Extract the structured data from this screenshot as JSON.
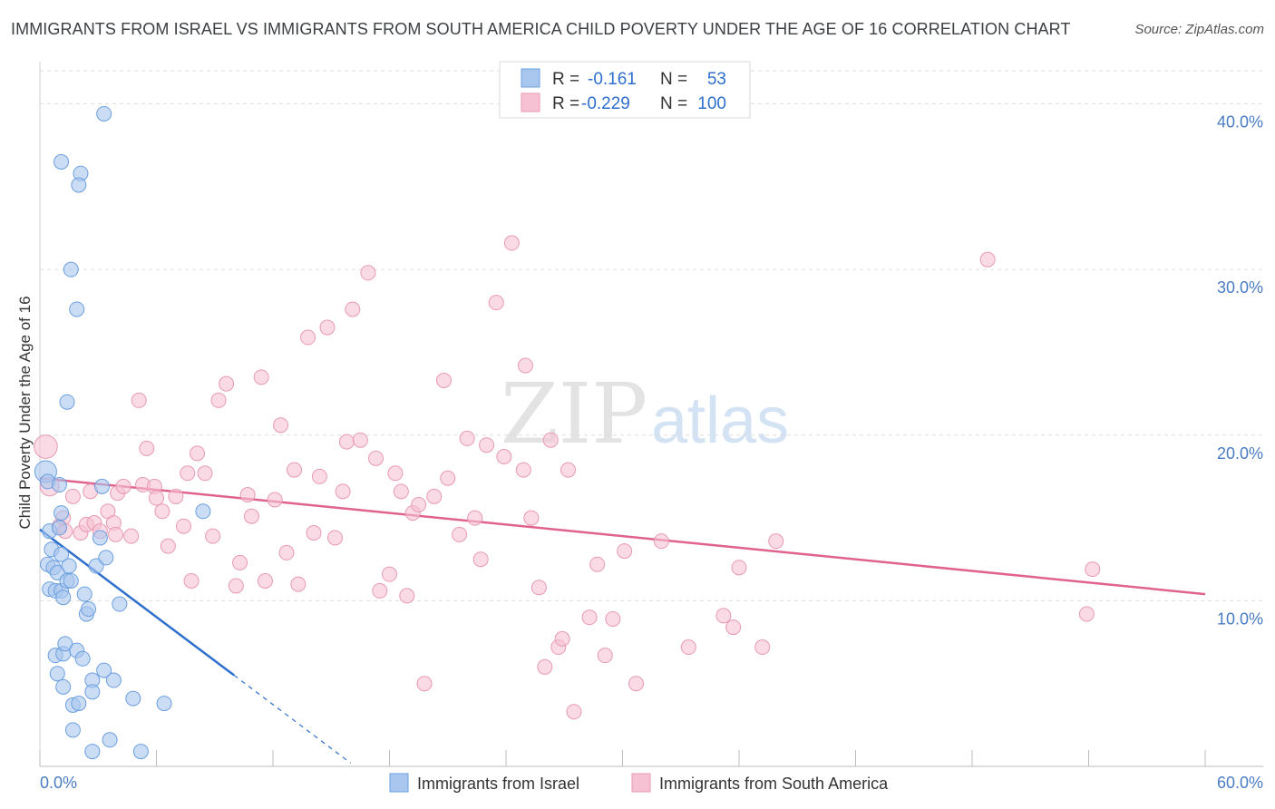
{
  "title": "IMMIGRANTS FROM ISRAEL VS IMMIGRANTS FROM SOUTH AMERICA CHILD POVERTY UNDER THE AGE OF 16 CORRELATION CHART",
  "source": "Source: ZipAtlas.com",
  "watermark": {
    "zip": "ZIP",
    "atlas": "atlas"
  },
  "colors": {
    "israel_fill": "#a9c7ee",
    "israel_stroke": "#6b9fe0",
    "israel_line": "#2e6fce",
    "sa_fill": "#f6c1d2",
    "sa_stroke": "#e89ab3",
    "sa_line": "#e0628f",
    "grid": "#dedede",
    "axis_text": "#4a7cc4"
  },
  "legend": {
    "rows": [
      {
        "r_label": "R =",
        "r_value": "-0.161",
        "n_label": "N =",
        "n_value": "53"
      },
      {
        "r_label": "R =",
        "r_value": "-0.229",
        "n_label": "N =",
        "n_value": "100"
      }
    ]
  },
  "chart_data": {
    "type": "scatter",
    "title": "IMMIGRANTS FROM ISRAEL VS IMMIGRANTS FROM SOUTH AMERICA CHILD POVERTY UNDER THE AGE OF 16 CORRELATION CHART",
    "xlabel": "",
    "ylabel": "Child Poverty Under the Age of 16",
    "xlim": [
      0,
      60
    ],
    "ylim": [
      0,
      42
    ],
    "x_tick_labels": [
      "0.0%",
      "60.0%"
    ],
    "y_ticks": [
      {
        "value": 10,
        "label": "10.0%"
      },
      {
        "value": 20,
        "label": "20.0%"
      },
      {
        "value": 30,
        "label": "30.0%"
      },
      {
        "value": 40,
        "label": "40.0%"
      }
    ],
    "grid": true,
    "legend_position": "top-center",
    "series": [
      {
        "name": "Immigrants from Israel",
        "color": "#a9c7ee",
        "trend": {
          "x": [
            0.0,
            10.0
          ],
          "y": [
            14.3,
            5.5
          ]
        },
        "trend_dashed": {
          "x": [
            10.0,
            16.0
          ],
          "y": [
            5.5,
            0.2
          ]
        },
        "points": [
          [
            0.3,
            17.8,
            1.5
          ],
          [
            0.4,
            17.2,
            1.0
          ],
          [
            0.5,
            14.2,
            1.0
          ],
          [
            0.4,
            12.2,
            1.0
          ],
          [
            0.5,
            10.7,
            1.0
          ],
          [
            0.6,
            13.1,
            1.0
          ],
          [
            0.7,
            12.0,
            1.0
          ],
          [
            0.8,
            10.6,
            1.0
          ],
          [
            0.9,
            11.7,
            1.0
          ],
          [
            0.8,
            6.7,
            1.0
          ],
          [
            0.9,
            5.6,
            1.0
          ],
          [
            1.0,
            17.0,
            1.0
          ],
          [
            1.1,
            15.3,
            1.0
          ],
          [
            1.0,
            14.4,
            1.0
          ],
          [
            1.1,
            12.8,
            1.0
          ],
          [
            1.1,
            10.6,
            1.0
          ],
          [
            1.2,
            10.2,
            1.0
          ],
          [
            1.2,
            6.8,
            1.0
          ],
          [
            1.3,
            7.4,
            1.0
          ],
          [
            1.2,
            4.8,
            1.0
          ],
          [
            1.4,
            11.2,
            1.0
          ],
          [
            1.5,
            12.1,
            1.0
          ],
          [
            1.6,
            11.2,
            1.0
          ],
          [
            1.7,
            3.7,
            1.0
          ],
          [
            1.7,
            2.2,
            1.0
          ],
          [
            1.9,
            7.0,
            1.0
          ],
          [
            2.0,
            3.8,
            1.0
          ],
          [
            2.2,
            6.5,
            1.0
          ],
          [
            2.3,
            10.4,
            1.0
          ],
          [
            2.4,
            9.2,
            1.0
          ],
          [
            2.5,
            9.5,
            1.0
          ],
          [
            2.7,
            5.2,
            1.0
          ],
          [
            2.7,
            4.5,
            1.0
          ],
          [
            2.7,
            0.9,
            1.0
          ],
          [
            2.9,
            12.1,
            1.0
          ],
          [
            3.1,
            13.8,
            1.0
          ],
          [
            3.2,
            16.9,
            1.0
          ],
          [
            3.3,
            5.8,
            1.0
          ],
          [
            3.4,
            12.6,
            1.0
          ],
          [
            3.6,
            1.6,
            1.0
          ],
          [
            3.8,
            5.2,
            1.0
          ],
          [
            4.1,
            9.8,
            1.0
          ],
          [
            4.8,
            4.1,
            1.0
          ],
          [
            5.2,
            0.9,
            1.0
          ],
          [
            6.4,
            3.8,
            1.0
          ],
          [
            8.4,
            15.4,
            1.0
          ],
          [
            1.1,
            36.5,
            1.0
          ],
          [
            2.1,
            35.8,
            1.0
          ],
          [
            2.0,
            35.1,
            1.0
          ],
          [
            3.3,
            39.4,
            1.0
          ],
          [
            1.6,
            30.0,
            1.0
          ],
          [
            1.9,
            27.6,
            1.0
          ],
          [
            1.4,
            22.0,
            1.0
          ]
        ]
      },
      {
        "name": "Immigrants from South America",
        "color": "#f6c1d2",
        "trend": {
          "x": [
            0.0,
            60.0
          ],
          "y": [
            17.4,
            10.4
          ]
        },
        "points": [
          [
            0.3,
            19.3,
            1.6
          ],
          [
            0.5,
            16.9,
            1.3
          ],
          [
            1.0,
            14.5,
            1.0
          ],
          [
            1.2,
            15.0,
            1.0
          ],
          [
            1.3,
            14.2,
            1.0
          ],
          [
            1.7,
            16.3,
            1.0
          ],
          [
            2.1,
            14.1,
            1.0
          ],
          [
            2.4,
            14.6,
            1.0
          ],
          [
            2.6,
            16.6,
            1.0
          ],
          [
            2.8,
            14.7,
            1.0
          ],
          [
            3.1,
            14.2,
            1.0
          ],
          [
            3.5,
            15.4,
            1.0
          ],
          [
            3.8,
            14.7,
            1.0
          ],
          [
            4.0,
            16.5,
            1.0
          ],
          [
            4.3,
            16.9,
            1.0
          ],
          [
            4.7,
            13.9,
            1.0
          ],
          [
            5.1,
            22.1,
            1.0
          ],
          [
            5.3,
            17.0,
            1.0
          ],
          [
            5.5,
            19.2,
            1.0
          ],
          [
            5.9,
            16.9,
            1.0
          ],
          [
            6.0,
            16.2,
            1.0
          ],
          [
            6.3,
            15.4,
            1.0
          ],
          [
            6.6,
            13.3,
            1.0
          ],
          [
            7.0,
            16.3,
            1.0
          ],
          [
            7.4,
            14.5,
            1.0
          ],
          [
            7.6,
            17.7,
            1.0
          ],
          [
            7.8,
            11.2,
            1.0
          ],
          [
            8.1,
            18.9,
            1.0
          ],
          [
            8.5,
            17.7,
            1.0
          ],
          [
            8.9,
            13.9,
            1.0
          ],
          [
            9.2,
            22.1,
            1.0
          ],
          [
            9.6,
            23.1,
            1.0
          ],
          [
            10.1,
            10.9,
            1.0
          ],
          [
            10.3,
            12.3,
            1.0
          ],
          [
            10.7,
            16.4,
            1.0
          ],
          [
            10.9,
            15.1,
            1.0
          ],
          [
            11.4,
            23.5,
            1.0
          ],
          [
            11.6,
            11.2,
            1.0
          ],
          [
            12.1,
            16.1,
            1.0
          ],
          [
            12.4,
            20.6,
            1.0
          ],
          [
            12.7,
            12.9,
            1.0
          ],
          [
            13.1,
            17.9,
            1.0
          ],
          [
            13.3,
            11.0,
            1.0
          ],
          [
            13.8,
            25.9,
            1.0
          ],
          [
            14.1,
            14.1,
            1.0
          ],
          [
            14.4,
            17.5,
            1.0
          ],
          [
            14.8,
            26.5,
            1.0
          ],
          [
            15.2,
            13.8,
            1.0
          ],
          [
            15.6,
            16.6,
            1.0
          ],
          [
            15.8,
            19.6,
            1.0
          ],
          [
            16.1,
            27.6,
            1.0
          ],
          [
            16.5,
            19.7,
            1.0
          ],
          [
            16.9,
            29.8,
            1.0
          ],
          [
            17.3,
            18.6,
            1.0
          ],
          [
            17.5,
            10.6,
            1.0
          ],
          [
            18.0,
            11.6,
            1.0
          ],
          [
            18.3,
            17.7,
            1.0
          ],
          [
            18.6,
            16.6,
            1.0
          ],
          [
            18.9,
            10.3,
            1.0
          ],
          [
            19.2,
            15.3,
            1.0
          ],
          [
            19.5,
            15.8,
            1.0
          ],
          [
            19.8,
            5.0,
            1.0
          ],
          [
            20.3,
            16.3,
            1.0
          ],
          [
            20.8,
            23.3,
            1.0
          ],
          [
            21.0,
            17.4,
            1.0
          ],
          [
            21.6,
            14.0,
            1.0
          ],
          [
            22.0,
            19.8,
            1.0
          ],
          [
            22.4,
            15.0,
            1.0
          ],
          [
            22.7,
            12.5,
            1.0
          ],
          [
            23.0,
            19.4,
            1.0
          ],
          [
            23.5,
            28.0,
            1.0
          ],
          [
            23.9,
            18.7,
            1.0
          ],
          [
            24.3,
            31.6,
            1.0
          ],
          [
            24.9,
            17.9,
            1.0
          ],
          [
            25.0,
            24.2,
            1.0
          ],
          [
            25.3,
            15.0,
            1.0
          ],
          [
            25.7,
            10.8,
            1.0
          ],
          [
            26.0,
            6.0,
            1.0
          ],
          [
            26.3,
            19.7,
            1.0
          ],
          [
            26.7,
            7.2,
            1.0
          ],
          [
            26.9,
            7.7,
            1.0
          ],
          [
            27.2,
            17.9,
            1.0
          ],
          [
            27.5,
            3.3,
            1.0
          ],
          [
            28.3,
            9.0,
            1.0
          ],
          [
            28.7,
            12.2,
            1.0
          ],
          [
            29.1,
            6.7,
            1.0
          ],
          [
            29.5,
            8.9,
            1.0
          ],
          [
            30.1,
            13.0,
            1.0
          ],
          [
            30.7,
            5.0,
            1.0
          ],
          [
            32.0,
            13.6,
            1.0
          ],
          [
            33.4,
            7.2,
            1.0
          ],
          [
            35.2,
            9.1,
            1.0
          ],
          [
            35.7,
            8.4,
            1.0
          ],
          [
            36.0,
            12.0,
            1.0
          ],
          [
            37.2,
            7.2,
            1.0
          ],
          [
            37.9,
            13.6,
            1.0
          ],
          [
            48.8,
            30.6,
            1.0
          ],
          [
            54.2,
            11.9,
            1.0
          ],
          [
            53.9,
            9.2,
            1.0
          ],
          [
            3.9,
            14.0,
            1.0
          ]
        ]
      }
    ]
  },
  "bottom_legend": [
    {
      "label": "Immigrants from Israel"
    },
    {
      "label": "Immigrants from South America"
    }
  ]
}
